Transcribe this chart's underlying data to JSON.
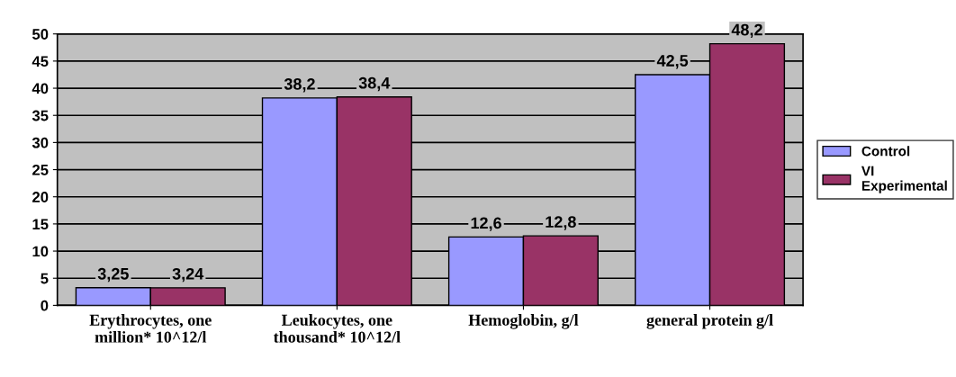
{
  "chart_data": {
    "type": "bar",
    "categories": [
      "Erythrocytes, one\nmillion* 10^12/l",
      "Leukocytes, one\nthousand* 10^12/l",
      "Hemoglobin, g/l",
      "general protein g/l"
    ],
    "series": [
      {
        "name": "Control",
        "color": "#9999ff",
        "values": [
          3.25,
          38.2,
          12.6,
          42.5
        ],
        "value_labels": [
          "3,25",
          "38,2",
          "12,6",
          "42,5"
        ]
      },
      {
        "name": "VI Experimental",
        "color": "#993366",
        "values": [
          3.24,
          38.4,
          12.8,
          48.2
        ],
        "value_labels": [
          "3,24",
          "38,4",
          "12,8",
          "48,2"
        ]
      }
    ],
    "ylim": [
      0,
      50
    ],
    "yticks": [
      0,
      5,
      10,
      15,
      20,
      25,
      30,
      35,
      40,
      45,
      50
    ],
    "grid": "y",
    "legend": "right"
  }
}
